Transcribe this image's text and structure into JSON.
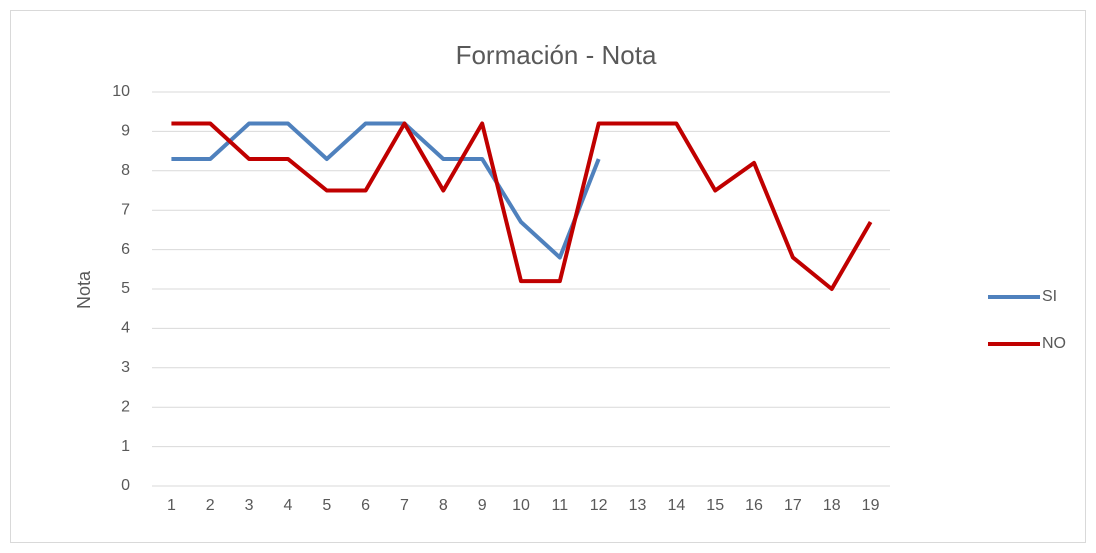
{
  "chart_data": {
    "type": "line",
    "title": "Formación - Nota",
    "ylabel": "Nota",
    "categories": [
      1,
      2,
      3,
      4,
      5,
      6,
      7,
      8,
      9,
      10,
      11,
      12,
      13,
      14,
      15,
      16,
      17,
      18,
      19
    ],
    "series": [
      {
        "name": "SI",
        "color": "#4f81bd",
        "values": [
          8.3,
          8.3,
          9.2,
          9.2,
          8.3,
          9.2,
          9.2,
          8.3,
          8.3,
          6.7,
          5.8,
          8.3,
          null,
          null,
          null,
          null,
          null,
          null,
          null
        ]
      },
      {
        "name": "NO",
        "color": "#c00000",
        "values": [
          9.2,
          9.2,
          8.3,
          8.3,
          7.5,
          7.5,
          9.2,
          7.5,
          9.2,
          5.2,
          5.2,
          9.2,
          9.2,
          9.2,
          7.5,
          8.2,
          5.8,
          5.0,
          6.7
        ]
      }
    ],
    "ylim": [
      0,
      10
    ],
    "yticks": [
      0,
      1,
      2,
      3,
      4,
      5,
      6,
      7,
      8,
      9,
      10
    ],
    "grid": true,
    "legend": "right"
  }
}
